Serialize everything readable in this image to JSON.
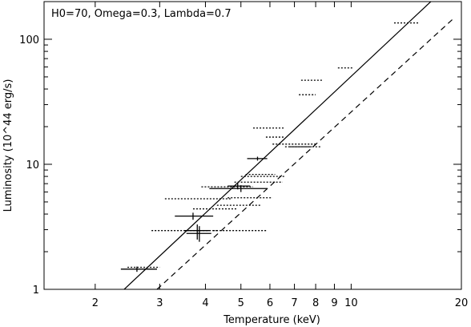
{
  "chart_data": {
    "type": "scatter",
    "annotation": "H0=70, Omega=0.3, Lambda=0.7",
    "xlabel": "Temperature (keV)",
    "ylabel": "Luminosity (10^44 erg/s)",
    "xscale": "log",
    "yscale": "log",
    "xlim": [
      1.45,
      20
    ],
    "ylim": [
      1,
      200
    ],
    "x_ticks": [
      {
        "value": 2,
        "label": "2"
      },
      {
        "value": 3,
        "label": "3"
      },
      {
        "value": 4,
        "label": "4"
      },
      {
        "value": 5,
        "label": "5"
      },
      {
        "value": 6,
        "label": "6"
      },
      {
        "value": 7,
        "label": "7"
      },
      {
        "value": 8,
        "label": "8"
      },
      {
        "value": 9,
        "label": "9"
      },
      {
        "value": 10,
        "label": "10"
      },
      {
        "value": 20,
        "label": "20"
      }
    ],
    "y_ticks": [
      {
        "value": 1,
        "label": "1"
      },
      {
        "value": 10,
        "label": "10"
      },
      {
        "value": 100,
        "label": "100"
      }
    ],
    "lines": [
      {
        "style": "solid",
        "points": [
          [
            2.4,
            1.0
          ],
          [
            16.5,
            200
          ]
        ]
      },
      {
        "style": "dashed",
        "points": [
          [
            2.95,
            1.0
          ],
          [
            19.2,
            150
          ]
        ]
      }
    ],
    "solid_points": [
      {
        "x": 2.6,
        "y": 1.45,
        "xerr": [
          2.35,
          2.95
        ],
        "yerr": [
          1.38,
          1.52
        ]
      },
      {
        "x": 3.7,
        "y": 3.85,
        "xerr": [
          3.3,
          4.2
        ],
        "yerr": [
          3.6,
          4.1
        ]
      },
      {
        "x": 3.8,
        "y": 2.95,
        "xerr": [
          3.5,
          4.1
        ],
        "yerr": [
          2.5,
          3.3
        ]
      },
      {
        "x": 3.85,
        "y": 2.8,
        "xerr": [
          3.55,
          4.15
        ],
        "yerr": [
          2.4,
          3.2
        ]
      },
      {
        "x": 4.9,
        "y": 6.7,
        "xerr": [
          4.6,
          5.3
        ],
        "yerr": [
          6.3,
          7.1
        ]
      },
      {
        "x": 5.0,
        "y": 6.4,
        "xerr": [
          4.1,
          5.9
        ],
        "yerr": [
          6.0,
          6.8
        ]
      },
      {
        "x": 5.55,
        "y": 11.1,
        "xerr": [
          5.2,
          5.9
        ],
        "yerr": [
          10.7,
          11.5
        ]
      }
    ],
    "dotted_points": [
      {
        "x": 1.75,
        "y": 0.97,
        "xerr": [
          1.5,
          2.1
        ]
      },
      {
        "x": 2.2,
        "y": 0.97,
        "xerr": [
          1.95,
          2.55
        ]
      },
      {
        "x": 2.7,
        "y": 1.5,
        "xerr": [
          2.45,
          3.0
        ]
      },
      {
        "x": 3.5,
        "y": 2.95,
        "xerr": [
          2.85,
          4.3
        ]
      },
      {
        "x": 4.95,
        "y": 2.95,
        "xerr": [
          4.2,
          5.9
        ]
      },
      {
        "x": 3.85,
        "y": 5.3,
        "xerr": [
          3.1,
          4.7
        ]
      },
      {
        "x": 4.55,
        "y": 6.6,
        "xerr": [
          3.9,
          5.4
        ]
      },
      {
        "x": 4.25,
        "y": 4.4,
        "xerr": [
          3.7,
          4.9
        ]
      },
      {
        "x": 4.95,
        "y": 4.7,
        "xerr": [
          4.3,
          5.7
        ]
      },
      {
        "x": 5.3,
        "y": 5.4,
        "xerr": [
          4.6,
          6.1
        ]
      },
      {
        "x": 5.6,
        "y": 7.2,
        "xerr": [
          4.8,
          6.5
        ]
      },
      {
        "x": 5.75,
        "y": 8.0,
        "xerr": [
          5.0,
          6.6
        ]
      },
      {
        "x": 5.65,
        "y": 8.3,
        "xerr": [
          5.15,
          6.2
        ]
      },
      {
        "x": 6.2,
        "y": 16.5,
        "xerr": [
          5.85,
          6.6
        ]
      },
      {
        "x": 5.95,
        "y": 19.5,
        "xerr": [
          5.4,
          6.6
        ]
      },
      {
        "x": 7.0,
        "y": 14.5,
        "xerr": [
          6.1,
          8.0
        ]
      },
      {
        "x": 7.2,
        "y": 13.8,
        "xerr": [
          6.6,
          7.8
        ]
      },
      {
        "x": 7.5,
        "y": 13.8,
        "xerr": [
          6.8,
          8.3
        ]
      },
      {
        "x": 7.6,
        "y": 36,
        "xerr": [
          7.2,
          8.0
        ]
      },
      {
        "x": 7.8,
        "y": 47,
        "xerr": [
          7.3,
          8.4
        ]
      },
      {
        "x": 9.6,
        "y": 59,
        "xerr": [
          9.2,
          10.1
        ]
      },
      {
        "x": 14.2,
        "y": 135,
        "xerr": [
          13.1,
          15.3
        ]
      }
    ]
  }
}
